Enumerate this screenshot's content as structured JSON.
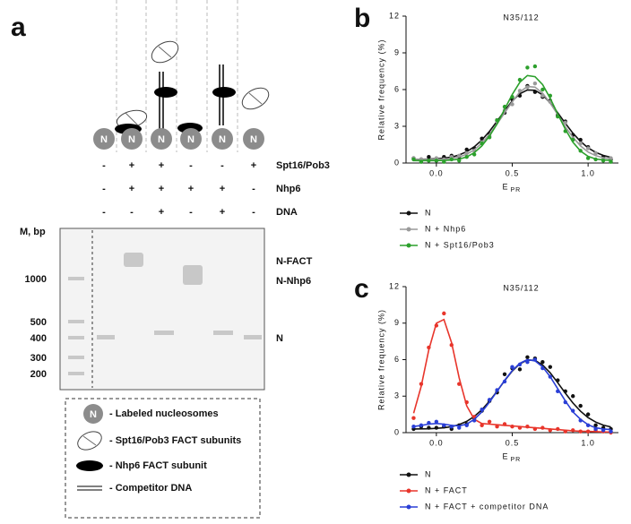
{
  "panel_a": {
    "label": "a",
    "nucleosome_labels": [
      "N",
      "N",
      "N",
      "N",
      "N",
      "N"
    ],
    "conditions": [
      {
        "label": "Spt16/Pob3",
        "signs": [
          "-",
          "+",
          "+",
          "-",
          "-",
          "+"
        ]
      },
      {
        "label": "Nhp6",
        "signs": [
          "-",
          "+",
          "+",
          "+",
          "+",
          "-"
        ]
      },
      {
        "label": "DNA",
        "signs": [
          "-",
          "-",
          "+",
          "-",
          "+",
          "-"
        ]
      }
    ],
    "gel": {
      "marker_title": "M, bp",
      "markers": [
        "1000",
        "500",
        "400",
        "300",
        "200"
      ],
      "band_labels": [
        "N-FACT",
        "N-Nhp6",
        "N"
      ]
    },
    "legend": [
      {
        "icon_label": "N",
        "text": "- Labeled nucleosomes"
      },
      {
        "text": "- Spt16/Pob3 FACT subunits"
      },
      {
        "text": "- Nhp6 FACT subunit"
      },
      {
        "text": "- Competitor  DNA"
      }
    ]
  },
  "chart_data": [
    {
      "type": "line",
      "panel": "b",
      "title": "N35/112",
      "ylabel": "Relative frequency (%)",
      "xlabel": "E",
      "xlabel_sub": "PR",
      "x": [
        -0.15,
        -0.1,
        -0.05,
        0,
        0.05,
        0.1,
        0.15,
        0.2,
        0.25,
        0.3,
        0.35,
        0.4,
        0.45,
        0.5,
        0.55,
        0.6,
        0.65,
        0.7,
        0.75,
        0.8,
        0.85,
        0.9,
        0.95,
        1.0,
        1.05,
        1.1,
        1.15
      ],
      "xlim": [
        -0.2,
        1.2
      ],
      "ylim": [
        0,
        12
      ],
      "xticks": [
        {
          "value": 0,
          "label": "0.0"
        },
        0.5,
        {
          "value": 1,
          "label": "1.0"
        }
      ],
      "yticks": [
        0,
        3,
        6,
        9,
        12
      ],
      "series": [
        {
          "name": "N",
          "color": "#111111",
          "values": [
            0.4,
            0.3,
            0.5,
            0.2,
            0.5,
            0.6,
            0.5,
            1.1,
            1.2,
            2.0,
            2.4,
            3.5,
            4.1,
            5.2,
            5.5,
            6.3,
            5.8,
            5.4,
            5.1,
            3.9,
            3.4,
            2.3,
            1.9,
            1.3,
            0.8,
            0.5,
            0.3
          ],
          "fit": [
            0.3,
            0.31,
            0.32,
            0.35,
            0.4,
            0.49,
            0.66,
            0.93,
            1.33,
            1.88,
            2.59,
            3.41,
            4.27,
            5.06,
            5.66,
            5.97,
            5.94,
            5.56,
            4.92,
            4.1,
            3.24,
            2.44,
            1.76,
            1.24,
            0.87,
            0.62,
            0.47
          ]
        },
        {
          "name": "N + Nhp6",
          "color": "#9a9a9a",
          "values": [
            0.4,
            0.3,
            0.2,
            0.4,
            0.3,
            0.5,
            0.6,
            0.8,
            1.0,
            1.7,
            2.2,
            3.4,
            4.3,
            4.8,
            5.9,
            6.2,
            6.5,
            5.5,
            5.0,
            3.8,
            3.3,
            2.0,
            1.6,
            1.2,
            0.8,
            0.3,
            0.4
          ],
          "fit": [
            0.3,
            0.3,
            0.3,
            0.31,
            0.33,
            0.38,
            0.5,
            0.72,
            1.08,
            1.62,
            2.35,
            3.2,
            4.1,
            5.0,
            5.8,
            6.25,
            6.2,
            5.7,
            4.9,
            3.95,
            2.95,
            2.1,
            1.4,
            0.9,
            0.6,
            0.43,
            0.35
          ]
        },
        {
          "name": "N + Spt16/Pob3",
          "color": "#2ca02c",
          "values": [
            0.3,
            0.1,
            0.2,
            0.2,
            0.1,
            0.3,
            0.2,
            0.5,
            0.7,
            1.6,
            2.1,
            3.5,
            4.6,
            5.4,
            6.8,
            7.8,
            7.9,
            6.0,
            5.5,
            3.8,
            2.6,
            1.9,
            1.0,
            0.4,
            0.3,
            0.2,
            0.1
          ],
          "fit": [
            0.2,
            0.2,
            0.2,
            0.2,
            0.21,
            0.24,
            0.32,
            0.5,
            0.85,
            1.4,
            2.2,
            3.2,
            4.4,
            5.6,
            6.6,
            7.15,
            7.05,
            6.4,
            5.3,
            4.0,
            2.75,
            1.7,
            0.98,
            0.55,
            0.33,
            0.25,
            0.21
          ]
        }
      ]
    },
    {
      "type": "line",
      "panel": "c",
      "title": "N35/112",
      "ylabel": "Relative frequency (%)",
      "xlabel": "E",
      "xlabel_sub": "PR",
      "x": [
        -0.15,
        -0.1,
        -0.05,
        0,
        0.05,
        0.1,
        0.15,
        0.2,
        0.25,
        0.3,
        0.35,
        0.4,
        0.45,
        0.5,
        0.55,
        0.6,
        0.65,
        0.7,
        0.75,
        0.8,
        0.85,
        0.9,
        0.95,
        1.0,
        1.05,
        1.1,
        1.15
      ],
      "xlim": [
        -0.2,
        1.2
      ],
      "ylim": [
        0,
        12
      ],
      "xticks": [
        {
          "value": 0,
          "label": "0.0"
        },
        0.5,
        {
          "value": 1,
          "label": "1.0"
        }
      ],
      "yticks": [
        0,
        3,
        6,
        9,
        12
      ],
      "series": [
        {
          "name": "N",
          "color": "#111111",
          "values": [
            0.3,
            0.5,
            0.4,
            0.4,
            0.5,
            0.3,
            0.6,
            0.7,
            1.2,
            1.8,
            2.6,
            3.3,
            4.8,
            5.3,
            5.2,
            6.2,
            6.1,
            5.8,
            5.4,
            4.3,
            3.4,
            3.0,
            2.2,
            1.5,
            0.6,
            0.4,
            0.3
          ],
          "fit": [
            0.3,
            0.31,
            0.32,
            0.35,
            0.4,
            0.49,
            0.66,
            0.93,
            1.33,
            1.88,
            2.59,
            3.41,
            4.27,
            5.06,
            5.66,
            5.97,
            5.94,
            5.56,
            4.92,
            4.1,
            3.24,
            2.44,
            1.76,
            1.24,
            0.87,
            0.62,
            0.47
          ]
        },
        {
          "name": "N + FACT",
          "color": "#e8352b",
          "values": [
            1.2,
            4.0,
            7.0,
            8.8,
            9.8,
            7.2,
            4.0,
            2.5,
            1.3,
            0.6,
            0.9,
            0.5,
            0.7,
            0.5,
            0.4,
            0.5,
            0.3,
            0.4,
            0.2,
            0.3,
            0.1,
            0.2,
            0.1,
            0.1,
            0.2,
            0.1,
            0.0
          ],
          "fit": [
            1.6,
            3.8,
            6.8,
            9.0,
            9.3,
            7.4,
            4.5,
            2.2,
            1.1,
            0.75,
            0.7,
            0.65,
            0.6,
            0.55,
            0.5,
            0.45,
            0.4,
            0.35,
            0.3,
            0.25,
            0.2,
            0.15,
            0.12,
            0.1,
            0.08,
            0.06,
            0.05
          ]
        },
        {
          "name": "N + FACT + competitor DNA",
          "color": "#2a3fd6",
          "values": [
            0.5,
            0.6,
            0.8,
            0.9,
            0.6,
            0.5,
            0.4,
            0.6,
            1.0,
            1.9,
            2.7,
            3.5,
            4.2,
            5.4,
            5.6,
            5.8,
            6.0,
            5.3,
            4.6,
            3.4,
            2.5,
            1.8,
            1.0,
            0.6,
            0.3,
            0.2,
            0.1
          ],
          "fit": [
            0.5,
            0.6,
            0.7,
            0.75,
            0.7,
            0.6,
            0.55,
            0.7,
            1.1,
            1.7,
            2.5,
            3.4,
            4.3,
            5.1,
            5.7,
            6.0,
            5.9,
            5.4,
            4.6,
            3.6,
            2.6,
            1.7,
            1.1,
            0.65,
            0.4,
            0.3,
            0.25
          ]
        }
      ]
    }
  ]
}
